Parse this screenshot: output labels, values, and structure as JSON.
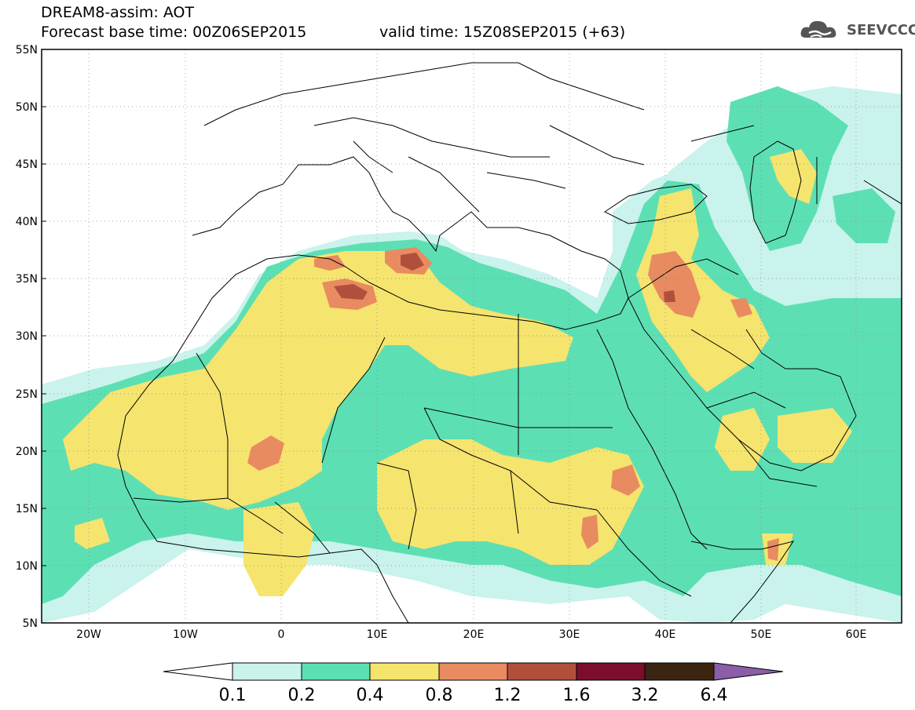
{
  "header": {
    "line1": "DREAM8-assim: AOT",
    "line2": "Forecast base time: 00Z06SEP2015",
    "line3": "valid time: 15Z08SEP2015 (+63)"
  },
  "logo": {
    "text": "SEEVCCC",
    "icon": "cloud-icon"
  },
  "map": {
    "lat_labels": [
      "55N",
      "50N",
      "45N",
      "40N",
      "35N",
      "30N",
      "25N",
      "20N",
      "15N",
      "10N",
      "5N"
    ],
    "lon_labels": [
      "20W",
      "10W",
      "0",
      "10E",
      "20E",
      "30E",
      "40E",
      "50E",
      "60E"
    ],
    "lat_range": [
      5,
      55
    ],
    "lon_range": [
      -25,
      65
    ]
  },
  "legend": {
    "thresholds": [
      "0.1",
      "0.2",
      "0.4",
      "0.8",
      "1.2",
      "1.6",
      "3.2",
      "6.4"
    ],
    "colors": [
      "#ffffff",
      "#c9f3ec",
      "#5ddfb4",
      "#f5e46e",
      "#e88b60",
      "#b0503c",
      "#7a0e2c",
      "#3a2412",
      "#8a5fa8"
    ]
  }
}
